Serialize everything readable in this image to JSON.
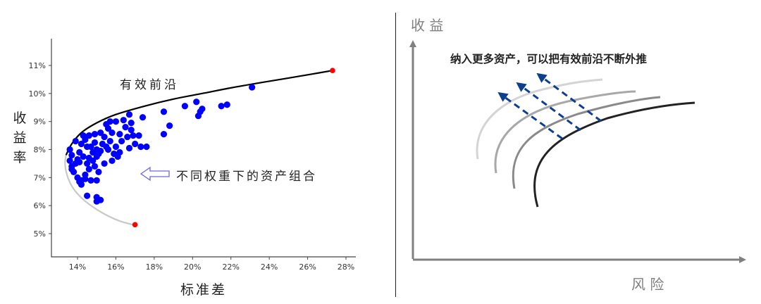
{
  "chart_data": [
    {
      "type": "scatter",
      "title": "",
      "xlabel": "标准差",
      "ylabel": "收益率",
      "xlim": [
        12.6,
        29.0
      ],
      "ylim": [
        4.2,
        11.9
      ],
      "x_ticks": [
        "14%",
        "16%",
        "18%",
        "20%",
        "22%",
        "24%",
        "26%",
        "28%"
      ],
      "x_tick_values": [
        14,
        16,
        18,
        20,
        22,
        24,
        26,
        28
      ],
      "y_ticks": [
        "5%",
        "6%",
        "7%",
        "8%",
        "9%",
        "10%",
        "11%"
      ],
      "y_tick_values": [
        5,
        6,
        7,
        8,
        9,
        10,
        11
      ],
      "grid": false,
      "annotations": [
        {
          "text": "有效前沿",
          "x": 16.7,
          "y": 10.35
        },
        {
          "text": "不同权重下的资产组合",
          "x": 19.5,
          "y": 7.1,
          "arrow": "left-hollow"
        }
      ],
      "series": [
        {
          "name": "efficient_frontier",
          "kind": "line",
          "color": "#000000",
          "points": [
            [
              13.4,
              7.8
            ],
            [
              13.7,
              8.2
            ],
            [
              14.2,
              8.6
            ],
            [
              15.0,
              8.95
            ],
            [
              16.0,
              9.25
            ],
            [
              17.5,
              9.55
            ],
            [
              19.0,
              9.8
            ],
            [
              20.5,
              10.0
            ],
            [
              22.0,
              10.2
            ],
            [
              23.5,
              10.38
            ],
            [
              25.0,
              10.55
            ],
            [
              26.3,
              10.7
            ],
            [
              27.3,
              10.82
            ]
          ]
        },
        {
          "name": "inefficient_frontier",
          "kind": "line",
          "color": "#c8c8c8",
          "points": [
            [
              13.4,
              7.8
            ],
            [
              13.35,
              7.5
            ],
            [
              13.45,
              7.1
            ],
            [
              13.7,
              6.7
            ],
            [
              14.1,
              6.35
            ],
            [
              14.7,
              6.0
            ],
            [
              15.4,
              5.7
            ],
            [
              16.2,
              5.45
            ],
            [
              17.0,
              5.3
            ]
          ]
        },
        {
          "name": "endpoints",
          "kind": "scatter",
          "color": "#ff0000",
          "points": [
            [
              17.0,
              5.32
            ],
            [
              27.3,
              10.82
            ]
          ]
        },
        {
          "name": "portfolios",
          "kind": "scatter",
          "color": "#0000ff",
          "points": [
            [
              13.6,
              8.0
            ],
            [
              13.7,
              7.8
            ],
            [
              13.6,
              7.6
            ],
            [
              13.7,
              7.4
            ],
            [
              13.8,
              7.2
            ],
            [
              13.9,
              7.5
            ],
            [
              13.7,
              7.3
            ],
            [
              14.0,
              7.0
            ],
            [
              14.1,
              6.85
            ],
            [
              14.2,
              6.75
            ],
            [
              14.0,
              7.65
            ],
            [
              14.1,
              7.9
            ],
            [
              14.2,
              8.2
            ],
            [
              14.3,
              8.5
            ],
            [
              14.4,
              8.35
            ],
            [
              14.5,
              8.1
            ],
            [
              14.3,
              7.75
            ],
            [
              14.5,
              7.5
            ],
            [
              14.6,
              7.3
            ],
            [
              14.4,
              7.1
            ],
            [
              14.6,
              7.7
            ],
            [
              14.8,
              7.9
            ],
            [
              14.7,
              8.1
            ],
            [
              14.9,
              8.25
            ],
            [
              15.0,
              8.0
            ],
            [
              14.8,
              7.6
            ],
            [
              14.9,
              7.4
            ],
            [
              15.1,
              7.2
            ],
            [
              15.0,
              7.75
            ],
            [
              15.2,
              7.95
            ],
            [
              15.3,
              8.2
            ],
            [
              15.4,
              8.45
            ],
            [
              15.2,
              8.6
            ],
            [
              15.6,
              8.75
            ],
            [
              15.5,
              8.9
            ],
            [
              15.8,
              8.6
            ],
            [
              15.7,
              8.3
            ],
            [
              15.6,
              8.0
            ],
            [
              15.9,
              7.85
            ],
            [
              15.8,
              7.6
            ],
            [
              16.1,
              7.75
            ],
            [
              16.0,
              8.1
            ],
            [
              16.3,
              8.3
            ],
            [
              16.2,
              8.55
            ],
            [
              16.5,
              8.8
            ],
            [
              16.4,
              9.05
            ],
            [
              16.7,
              9.25
            ],
            [
              16.8,
              8.95
            ],
            [
              16.6,
              8.45
            ],
            [
              17.0,
              8.2
            ],
            [
              17.2,
              8.5
            ],
            [
              17.4,
              9.15
            ],
            [
              15.0,
              6.9
            ],
            [
              14.7,
              6.9
            ],
            [
              14.5,
              6.35
            ],
            [
              15.0,
              6.3
            ],
            [
              15.2,
              6.2
            ],
            [
              15.0,
              6.15
            ],
            [
              14.2,
              6.9
            ],
            [
              14.4,
              6.95
            ],
            [
              15.4,
              7.5
            ],
            [
              15.1,
              7.85
            ],
            [
              14.6,
              8.5
            ],
            [
              14.9,
              8.55
            ],
            [
              15.7,
              9.0
            ],
            [
              16.9,
              8.5
            ],
            [
              16.2,
              7.9
            ],
            [
              16.0,
              9.0
            ],
            [
              18.5,
              9.35
            ],
            [
              18.5,
              8.55
            ],
            [
              18.8,
              8.85
            ],
            [
              19.6,
              9.55
            ],
            [
              20.2,
              9.7
            ],
            [
              20.3,
              9.2
            ],
            [
              20.5,
              9.45
            ],
            [
              20.4,
              9.35
            ],
            [
              21.5,
              9.55
            ],
            [
              21.8,
              9.6
            ],
            [
              23.1,
              10.22
            ],
            [
              17.6,
              8.1
            ],
            [
              17.3,
              8.1
            ],
            [
              13.9,
              8.3
            ],
            [
              14.1,
              7.55
            ],
            [
              15.5,
              8.1
            ],
            [
              16.7,
              8.05
            ],
            [
              16.8,
              8.7
            ]
          ]
        }
      ]
    },
    {
      "type": "line",
      "title": "纳入更多资产，可以把有效前沿不断外推",
      "xlabel": "风险",
      "ylabel": "收益",
      "grid": false,
      "series": [
        {
          "name": "frontier_1",
          "color": "#222222"
        },
        {
          "name": "frontier_2",
          "color": "#8a8a8a"
        },
        {
          "name": "frontier_3",
          "color": "#a8a8a8"
        },
        {
          "name": "frontier_4",
          "color": "#d4d4d4"
        }
      ],
      "arrows": {
        "count": 3,
        "style": "dashed",
        "color": "#0d3f8f",
        "direction": "up-left"
      }
    }
  ],
  "left": {
    "ylabel_chars": [
      "收",
      "益",
      "率"
    ],
    "xlabel": "标准差",
    "frontier_label": "有效前沿",
    "portfolio_label": "不同权重下的资产组合"
  },
  "right": {
    "ylabel": "收 益",
    "xlabel": "风 险",
    "caption": "纳入更多资产，可以把有效前沿不断外推"
  }
}
